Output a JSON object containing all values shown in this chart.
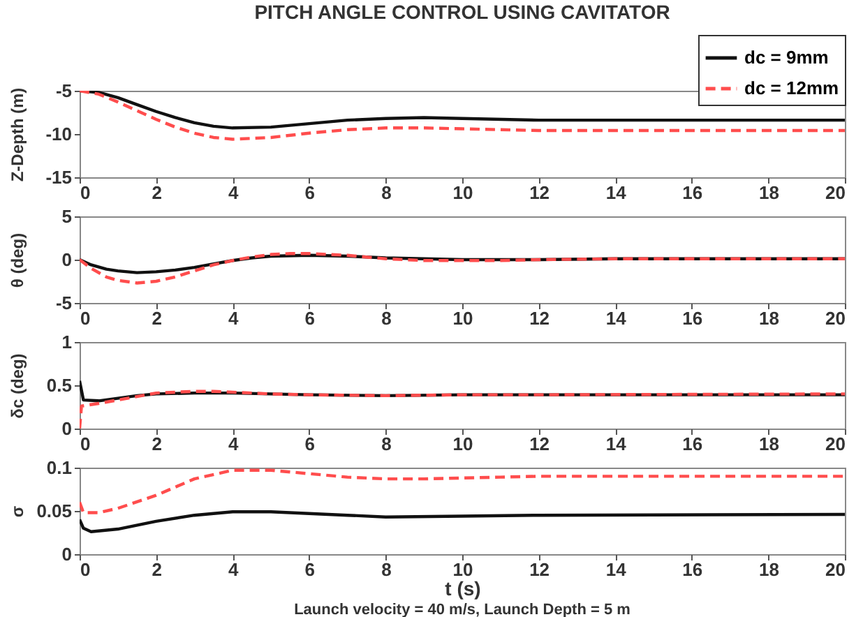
{
  "chart_data": [
    {
      "type": "line",
      "title": "PITCH ANGLE CONTROL USING CAVITATOR",
      "ylabel": "Z-Depth (m)",
      "xlim": [
        0,
        20
      ],
      "xticks": [
        0,
        2,
        4,
        6,
        8,
        10,
        12,
        14,
        16,
        18,
        20
      ],
      "ylim": [
        -15,
        -5
      ],
      "yticks": [
        -15,
        -10,
        -5
      ],
      "legend": "top right",
      "series": [
        {
          "name": "dc = 9mm",
          "color": "#111111",
          "line_style": "solid",
          "x": [
            0,
            0.5,
            1,
            1.5,
            2,
            2.5,
            3,
            3.5,
            4,
            5,
            6,
            7,
            8,
            9,
            10,
            12,
            14,
            16,
            20
          ],
          "values": [
            -5,
            -5.2,
            -5.8,
            -6.6,
            -7.4,
            -8.1,
            -8.7,
            -9.1,
            -9.3,
            -9.2,
            -8.8,
            -8.4,
            -8.2,
            -8.1,
            -8.2,
            -8.4,
            -8.4,
            -8.4,
            -8.4
          ]
        },
        {
          "name": "dc = 12mm",
          "color": "#ff4d4d",
          "line_style": "dashed",
          "x": [
            0,
            0.5,
            1,
            1.5,
            2,
            2.5,
            3,
            3.5,
            4,
            5,
            6,
            7,
            8,
            9,
            10,
            11,
            12,
            14,
            20
          ],
          "values": [
            -5,
            -5.4,
            -6.3,
            -7.3,
            -8.3,
            -9.2,
            -9.9,
            -10.4,
            -10.6,
            -10.4,
            -9.9,
            -9.5,
            -9.3,
            -9.3,
            -9.4,
            -9.5,
            -9.6,
            -9.6,
            -9.6
          ]
        }
      ]
    },
    {
      "type": "line",
      "ylabel": "θ (deg)",
      "xlim": [
        0,
        20
      ],
      "xticks": [
        0,
        2,
        4,
        6,
        8,
        10,
        12,
        14,
        16,
        18,
        20
      ],
      "ylim": [
        -5,
        5
      ],
      "yticks": [
        -5,
        0,
        5
      ],
      "series": [
        {
          "color": "#111111",
          "line_style": "solid",
          "x": [
            0,
            0.3,
            0.7,
            1,
            1.5,
            2,
            2.5,
            3,
            3.5,
            4,
            4.5,
            5,
            6,
            7,
            8,
            9,
            10,
            12,
            14,
            20
          ],
          "values": [
            0,
            -0.6,
            -1.1,
            -1.3,
            -1.5,
            -1.4,
            -1.2,
            -0.9,
            -0.5,
            -0.1,
            0.2,
            0.4,
            0.5,
            0.4,
            0.2,
            0.1,
            0,
            0,
            0.1,
            0.1
          ]
        },
        {
          "color": "#ff4d4d",
          "line_style": "dashed",
          "x": [
            0,
            0.3,
            0.7,
            1,
            1.5,
            2,
            2.5,
            3,
            3.5,
            4,
            4.5,
            5,
            5.5,
            6,
            7,
            8,
            9,
            10,
            11,
            12,
            14,
            20
          ],
          "values": [
            0,
            -1,
            -2,
            -2.4,
            -2.7,
            -2.5,
            -2,
            -1.3,
            -0.6,
            -0.1,
            0.3,
            0.6,
            0.7,
            0.7,
            0.5,
            0.1,
            -0.1,
            -0.1,
            -0.1,
            0,
            0.1,
            0.1
          ]
        }
      ]
    },
    {
      "type": "line",
      "ylabel": "δc (deg)",
      "xlim": [
        0,
        20
      ],
      "xticks": [
        0,
        2,
        4,
        6,
        8,
        10,
        12,
        14,
        16,
        18,
        20
      ],
      "ylim": [
        0,
        1
      ],
      "yticks": [
        0,
        0.5,
        1
      ],
      "series": [
        {
          "color": "#111111",
          "line_style": "solid",
          "x": [
            0,
            0.1,
            0.5,
            1,
            1.5,
            2,
            3,
            4,
            5,
            6,
            8,
            10,
            20
          ],
          "values": [
            0.55,
            0.33,
            0.32,
            0.35,
            0.38,
            0.4,
            0.41,
            0.41,
            0.4,
            0.39,
            0.38,
            0.39,
            0.39
          ]
        },
        {
          "color": "#ff4d4d",
          "line_style": "dashed",
          "x": [
            0,
            0.05,
            0.5,
            1,
            1.5,
            2,
            3,
            3.5,
            4,
            5,
            6,
            8,
            10,
            12,
            20
          ],
          "values": [
            0,
            0.26,
            0.29,
            0.33,
            0.37,
            0.41,
            0.43,
            0.43,
            0.42,
            0.4,
            0.39,
            0.38,
            0.39,
            0.39,
            0.4
          ]
        }
      ]
    },
    {
      "type": "line",
      "ylabel": "σ",
      "xlabel": "t (s)",
      "annotations": [
        "Launch velocity = 40 m/s, Launch Depth = 5 m"
      ],
      "xlim": [
        0,
        20
      ],
      "xticks": [
        0,
        2,
        4,
        6,
        8,
        10,
        12,
        14,
        16,
        18,
        20
      ],
      "ylim": [
        0,
        0.1
      ],
      "yticks": [
        0,
        0.05,
        0.1
      ],
      "series": [
        {
          "color": "#111111",
          "line_style": "solid",
          "x": [
            0,
            0.1,
            0.3,
            1,
            2,
            3,
            4,
            5,
            6,
            7,
            8,
            10,
            12,
            20
          ],
          "values": [
            0.04,
            0.03,
            0.026,
            0.029,
            0.038,
            0.045,
            0.049,
            0.049,
            0.047,
            0.045,
            0.043,
            0.044,
            0.045,
            0.046
          ]
        },
        {
          "color": "#ff4d4d",
          "line_style": "dashed",
          "x": [
            0,
            0.1,
            0.5,
            1,
            2,
            3,
            4,
            5,
            6,
            7,
            8,
            9,
            10,
            11,
            12,
            20
          ],
          "values": [
            0.06,
            0.048,
            0.048,
            0.053,
            0.068,
            0.087,
            0.097,
            0.097,
            0.093,
            0.089,
            0.087,
            0.087,
            0.088,
            0.089,
            0.09,
            0.09
          ]
        }
      ]
    }
  ]
}
